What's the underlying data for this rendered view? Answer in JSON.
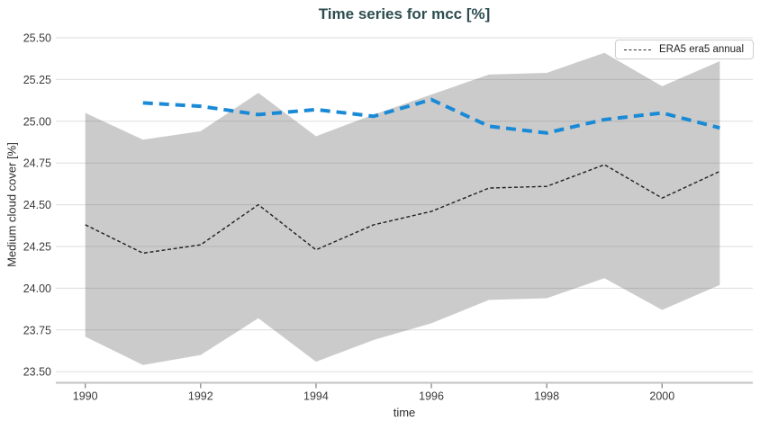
{
  "figure": {
    "background": "#ffffff"
  },
  "chart_data": {
    "type": "line",
    "title": "Time series for mcc [%]",
    "title_color": "#2e4d50",
    "xlabel": "time",
    "ylabel": "Medium cloud cover [%]",
    "grid": true,
    "xlim": [
      1989.5,
      2001.6
    ],
    "ylim": [
      23.44,
      25.54
    ],
    "xticks": [
      1990,
      1992,
      1994,
      1996,
      1998,
      2000
    ],
    "yticks": [
      25.5,
      25.25,
      25.0,
      24.75,
      24.5,
      24.25,
      24.0,
      23.75,
      23.5
    ],
    "ytick_labels": [
      "25.50",
      "25.25",
      "25.00",
      "24.75",
      "24.50",
      "24.25",
      "24.00",
      "23.75",
      "23.50"
    ],
    "band": {
      "key": "uncertainty-band",
      "color": "#cbcbcb",
      "x": [
        1990,
        1991,
        1992,
        1993,
        1994,
        1995,
        1996,
        1997,
        1998,
        1999,
        2000,
        2001
      ],
      "upper": [
        25.05,
        24.89,
        24.94,
        25.17,
        24.91,
        25.04,
        25.16,
        25.28,
        25.29,
        25.41,
        25.21,
        25.36
      ],
      "lower": [
        23.71,
        23.54,
        23.6,
        23.82,
        23.56,
        23.69,
        23.79,
        23.93,
        23.94,
        24.06,
        23.87,
        24.02
      ]
    },
    "series": [
      {
        "key": "era5-era5-annual",
        "name": "ERA5 era5 annual",
        "color": "#1f1f1f",
        "style": "dashed",
        "width": 1.4,
        "dash": "4 2.6",
        "x": [
          1990,
          1991,
          1992,
          1993,
          1994,
          1995,
          1996,
          1997,
          1998,
          1999,
          2000,
          2001
        ],
        "values": [
          24.38,
          24.21,
          24.26,
          24.5,
          24.23,
          24.38,
          24.46,
          24.6,
          24.61,
          24.74,
          24.54,
          24.7
        ]
      },
      {
        "key": "unlabeled-blue",
        "name": "",
        "color": "#1a8ad6",
        "style": "dashed",
        "width": 4,
        "dash": "11 7",
        "x": [
          1991,
          1992,
          1993,
          1994,
          1995,
          1996,
          1997,
          1998,
          1999,
          2000,
          2001
        ],
        "values": [
          25.11,
          25.09,
          25.04,
          25.07,
          25.03,
          25.13,
          24.97,
          24.93,
          25.01,
          25.05,
          24.96
        ]
      }
    ],
    "legend": {
      "position": "upper right",
      "entries": [
        {
          "label": "ERA5 era5 annual",
          "dash": true,
          "color": "#2a2a2a"
        }
      ]
    }
  }
}
